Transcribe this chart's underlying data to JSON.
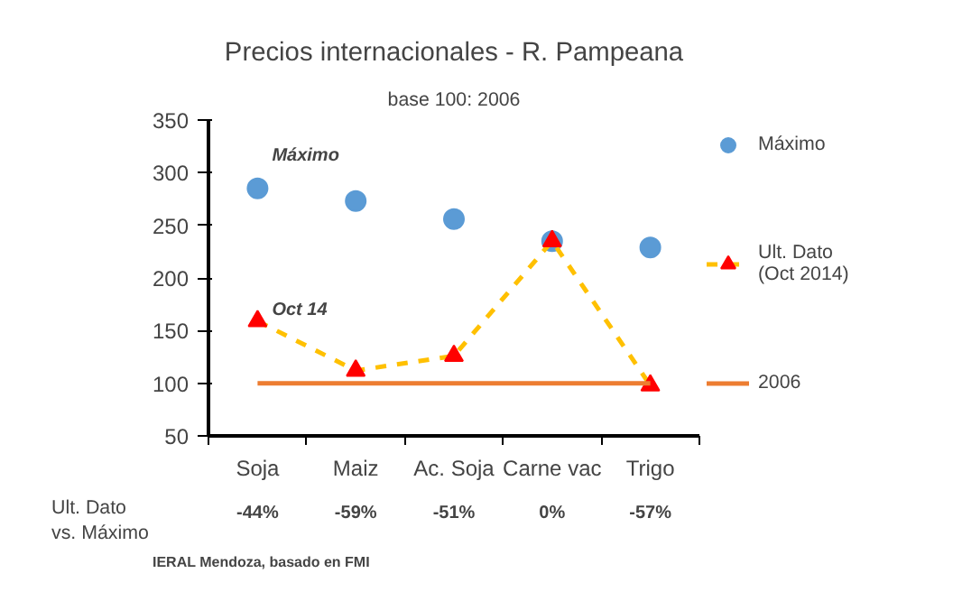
{
  "chart_data": {
    "type": "line",
    "title": "Precios internacionales - R. Pampeana",
    "subtitle": "base 100: 2006",
    "categories": [
      "Soja",
      "Maiz",
      "Ac. Soja",
      "Carne vac",
      "Trigo"
    ],
    "series": [
      {
        "name": "Máximo",
        "type": "scatter",
        "marker": "circle",
        "color": "#5b9bd5",
        "values": [
          285,
          273,
          256,
          235,
          229
        ]
      },
      {
        "name": "Ult. Dato\n(Oct 2014)",
        "marker": "triangle",
        "line_style": "dashed",
        "color": "#ffc000",
        "colors": [
          "#ff0000",
          "#ff0000",
          "#ff0000",
          "#ff0000",
          "#ff0000"
        ],
        "values": [
          159,
          112,
          126,
          235,
          98
        ]
      },
      {
        "name": "2006",
        "color": "#ed7d31",
        "values": [
          100,
          100,
          100,
          100,
          100
        ]
      }
    ],
    "ylim": [
      50,
      350
    ],
    "yticks": [
      50,
      100,
      150,
      200,
      250,
      300,
      350
    ],
    "grid": false,
    "legend": "right",
    "annotations": [
      "Máximo",
      "Oct 14",
      "Ult. Dato\nvs. Máximo",
      "-44%",
      "-59%",
      "-51%",
      "0%",
      "-57%",
      "IERAL Mendoza, basado en FMI"
    ]
  }
}
